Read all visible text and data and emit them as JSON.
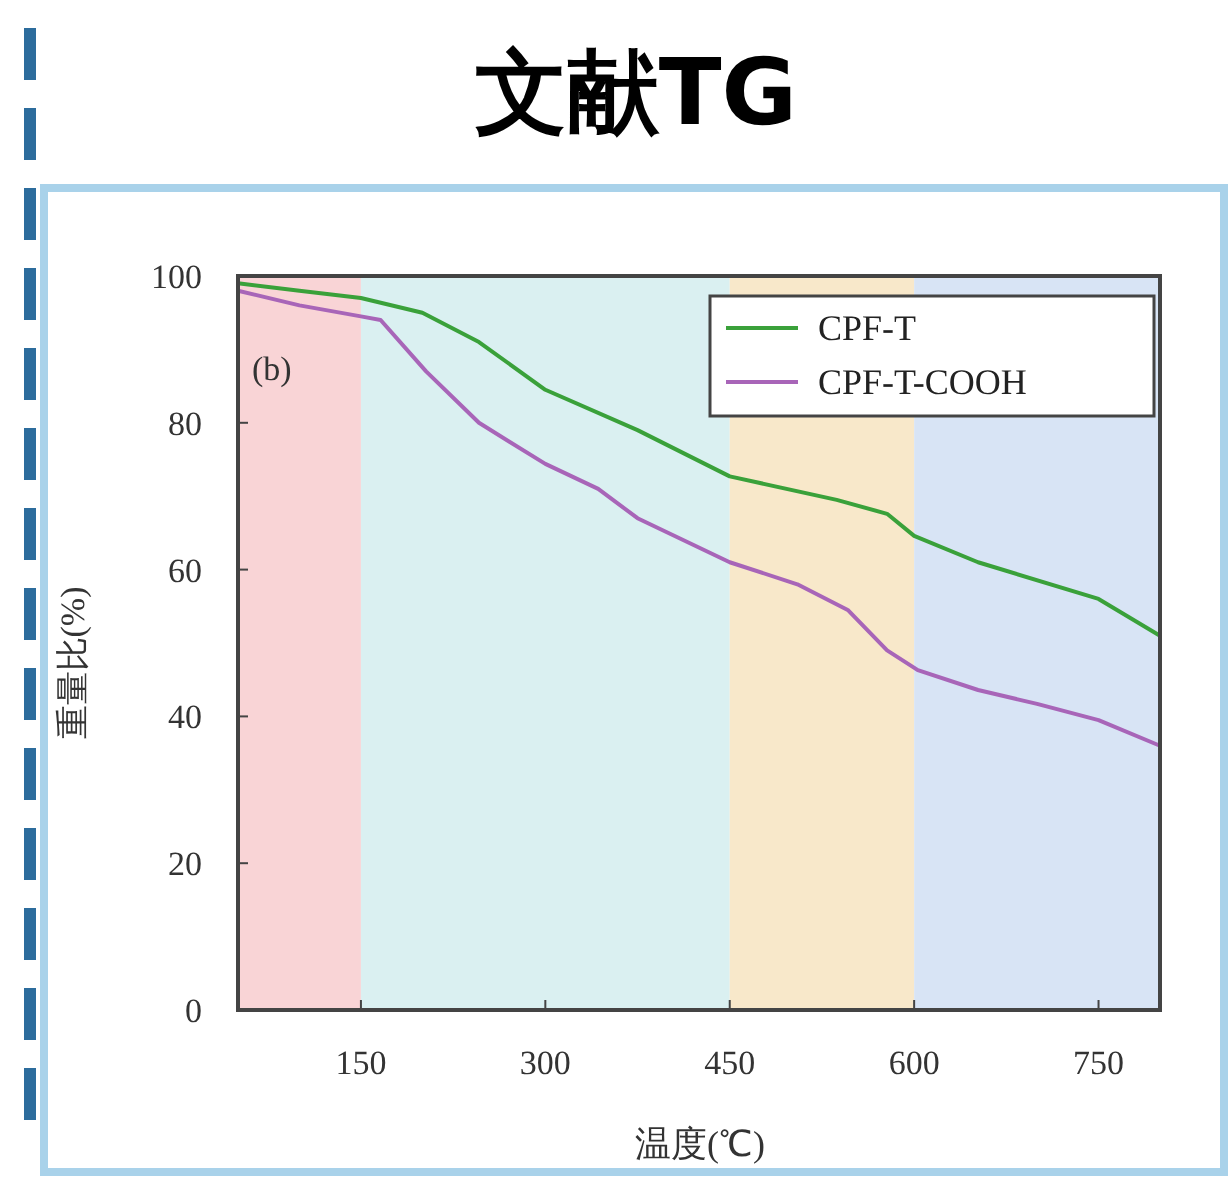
{
  "chart_data": {
    "type": "line",
    "title": "文献TG",
    "xlabel": "温度(℃)",
    "ylabel": "重量比(%)",
    "annotations": [
      "(b)"
    ],
    "xlim": [
      50,
      800
    ],
    "xticks": [
      150,
      300,
      450,
      600,
      750
    ],
    "ylim": [
      0,
      100
    ],
    "yticks": [
      0,
      20,
      40,
      60,
      80,
      100
    ],
    "grid": false,
    "legend": "top right",
    "marker": "none",
    "line_style": "solid",
    "bands": [
      {
        "axis": "x",
        "from": 50,
        "to": 150,
        "color": "#f8cfd2"
      },
      {
        "axis": "x",
        "from": 150,
        "to": 450,
        "color": "#d6eef0"
      },
      {
        "axis": "x",
        "from": 450,
        "to": 600,
        "color": "#f7e6c4"
      },
      {
        "axis": "x",
        "from": 600,
        "to": 800,
        "color": "#d4e1f4"
      }
    ],
    "series": [
      {
        "name": "CPF-T",
        "color": "#3aa13a",
        "x": [
          50,
          100,
          150,
          200,
          246,
          300,
          375,
          450,
          537,
          578,
          600,
          652,
          750,
          800
        ],
        "values": [
          99,
          98,
          97,
          95,
          91,
          84.5,
          79,
          72.7,
          69.5,
          67.6,
          64.6,
          61,
          56,
          51
        ]
      },
      {
        "name": "CPF-T-COOH",
        "color": "#a865b8",
        "x": [
          50,
          100,
          150,
          166,
          203,
          246,
          300,
          343,
          375,
          450,
          505,
          546,
          578,
          603,
          652,
          700,
          750,
          800
        ],
        "values": [
          98,
          96,
          94.5,
          94,
          87,
          80,
          74.4,
          71,
          67,
          61,
          58,
          54.5,
          49,
          46.3,
          43.6,
          41.7,
          39.5,
          36
        ]
      }
    ]
  }
}
